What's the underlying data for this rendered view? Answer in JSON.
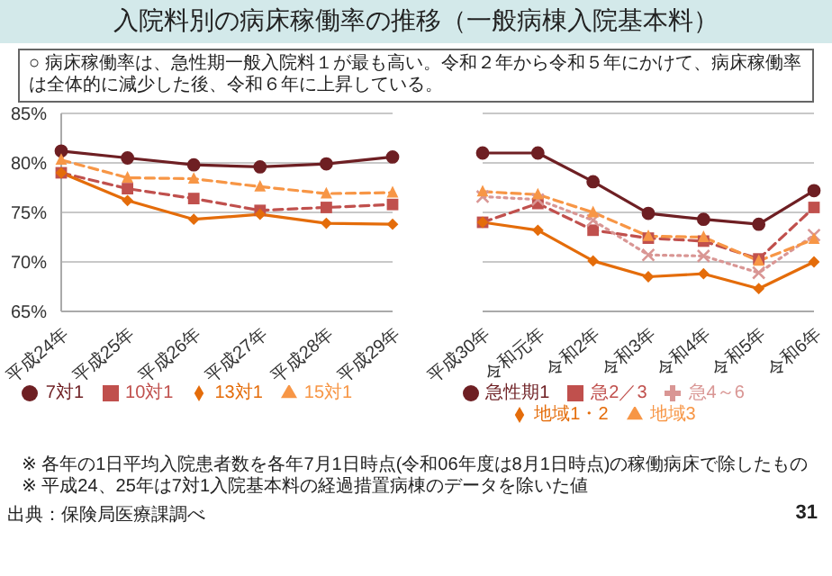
{
  "chart_data": [
    {
      "type": "line",
      "title": "入院料別の病床稼働率の推移（一般病棟入院基本料）",
      "annotations": [
        "○ 病床稼働率は、急性期一般入院料１が最も高い。令和２年から令和５年にかけて、病床稼働率は全体的に減少した後、令和６年に上昇している。",
        "※ 各年の1日平均入院患者数を各年7月1日時点(令和06年度は8月1日時点)の稼働病床で除したもの",
        "※ 平成24、25年は7対1入院基本料の経過措置病棟のデータを除いた値",
        "出典：保険局医療課調べ",
        "31"
      ],
      "categories": [
        "平成24年",
        "平成25年",
        "平成26年",
        "平成27年",
        "平成28年",
        "平成29年"
      ],
      "series": [
        {
          "name": "7対1",
          "color": "#6e1f23",
          "marker": "circle",
          "line_style": "solid",
          "values": [
            81.2,
            80.5,
            79.8,
            79.6,
            79.9,
            80.6
          ]
        },
        {
          "name": "10対1",
          "color": "#c0504d",
          "marker": "square",
          "line_style": "dashed",
          "values": [
            79.0,
            77.4,
            76.4,
            75.2,
            75.5,
            75.8
          ]
        },
        {
          "name": "13対1",
          "color": "#e46c0a",
          "marker": "diamond",
          "line_style": "solid",
          "values": [
            79.0,
            76.2,
            74.3,
            74.8,
            73.9,
            73.8
          ]
        },
        {
          "name": "15対1",
          "color": "#f79646",
          "marker": "triangle",
          "line_style": "dashed",
          "values": [
            80.3,
            78.5,
            78.4,
            77.6,
            76.9,
            77.0
          ]
        }
      ],
      "ylim": [
        65,
        85
      ],
      "yticks": [
        {
          "value": 65,
          "label": "65%"
        },
        {
          "value": 70,
          "label": "70%"
        },
        {
          "value": 75,
          "label": "75%"
        },
        {
          "value": 80,
          "label": "80%"
        },
        {
          "value": 85,
          "label": "85%"
        }
      ],
      "grid": "y",
      "legend": "bottom"
    },
    {
      "type": "line",
      "categories": [
        "平成30年",
        "令和元年",
        "令和2年",
        "令和3年",
        "令和4年",
        "令和5年",
        "令和6年"
      ],
      "series": [
        {
          "name": "急性期1",
          "color": "#6e1f23",
          "marker": "circle",
          "line_style": "solid",
          "values": [
            81.0,
            81.0,
            78.1,
            74.9,
            74.3,
            73.8,
            77.2
          ]
        },
        {
          "name": "急2／3",
          "color": "#c0504d",
          "marker": "square",
          "line_style": "dashed",
          "values": [
            74.0,
            75.9,
            73.2,
            72.4,
            72.1,
            70.3,
            75.5
          ]
        },
        {
          "name": "急4～6",
          "color": "#d99694",
          "marker": "cross",
          "line_style": "dotted",
          "values": [
            76.6,
            76.3,
            74.2,
            70.7,
            70.6,
            68.9,
            72.7
          ]
        },
        {
          "name": "地域1・2",
          "color": "#e46c0a",
          "marker": "diamond",
          "line_style": "solid",
          "values": [
            74.0,
            73.2,
            70.1,
            68.5,
            68.8,
            67.3,
            70.0
          ]
        },
        {
          "name": "地域3",
          "color": "#f79646",
          "marker": "triangle",
          "line_style": "dashed",
          "values": [
            77.1,
            76.8,
            75.0,
            72.6,
            72.5,
            70.1,
            72.3
          ]
        }
      ],
      "ylim": [
        65,
        85
      ],
      "yticks": [
        65,
        70,
        75,
        80,
        85
      ],
      "grid": "y",
      "legend": "bottom",
      "tick_labels": "x"
    }
  ]
}
